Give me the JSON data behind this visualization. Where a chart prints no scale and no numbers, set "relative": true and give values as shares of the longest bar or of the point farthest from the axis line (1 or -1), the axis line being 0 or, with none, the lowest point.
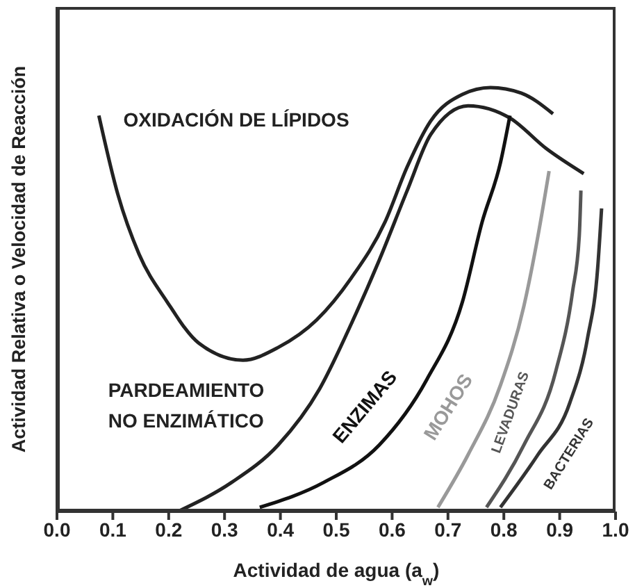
{
  "chart_data": {
    "type": "line",
    "relative": true,
    "xlabel": "Actividad de agua (a$_{w}$)",
    "ylabel": "Actividad Relativa o Velocidad de Reacción",
    "xlim": [
      0,
      1
    ],
    "xticks": [
      {
        "value": 0,
        "label": "0.0"
      },
      0.1,
      0.2,
      0.3,
      0.4,
      0.5,
      0.6,
      0.7,
      0.8,
      0.9,
      {
        "value": 1,
        "label": "1.0"
      }
    ],
    "series": [
      {
        "name": "OXIDACIÓN DE LÍPIDOS",
        "color": "#222222",
        "x": [
          0.075,
          0.109,
          0.147,
          0.197,
          0.254,
          0.333,
          0.396,
          0.465,
          0.527,
          0.587,
          0.627,
          0.669,
          0.726,
          0.776,
          0.831,
          0.888
        ],
        "values": [
          0.934,
          0.748,
          0.607,
          0.495,
          0.397,
          0.357,
          0.387,
          0.452,
          0.551,
          0.682,
          0.813,
          0.921,
          0.984,
          1.0,
          0.987,
          0.938
        ]
      },
      {
        "name": "PARDEAMIENTO NO ENZIMÁTICO",
        "color": "#222222",
        "x": [
          0.221,
          0.313,
          0.396,
          0.47,
          0.527,
          0.577,
          0.627,
          0.669,
          0.736,
          0.811,
          0.876,
          0.943
        ],
        "values": [
          0.003,
          0.069,
          0.157,
          0.289,
          0.443,
          0.593,
          0.757,
          0.889,
          0.957,
          0.928,
          0.856,
          0.797
        ]
      },
      {
        "name": "ENZIMAS",
        "color": "#111111",
        "x": [
          0.363,
          0.478,
          0.577,
          0.662,
          0.726,
          0.761,
          0.794,
          0.811
        ],
        "values": [
          0.01,
          0.069,
          0.157,
          0.311,
          0.495,
          0.682,
          0.823,
          0.934
        ]
      },
      {
        "name": "MOHOS",
        "color": "#999999",
        "x": [
          0.682,
          0.736,
          0.794,
          0.836,
          0.861,
          0.881
        ],
        "values": [
          0.01,
          0.134,
          0.298,
          0.485,
          0.649,
          0.803
        ]
      },
      {
        "name": "LEVADURAS",
        "color": "#555555",
        "x": [
          0.769,
          0.836,
          0.893,
          0.923,
          0.935,
          0.938
        ],
        "values": [
          0.01,
          0.157,
          0.331,
          0.518,
          0.649,
          0.757
        ]
      },
      {
        "name": "BACTERIAS",
        "color": "#333333",
        "x": [
          0.794,
          0.861,
          0.918,
          0.95,
          0.968,
          0.975
        ],
        "values": [
          0.01,
          0.134,
          0.256,
          0.41,
          0.574,
          0.715
        ]
      }
    ]
  }
}
